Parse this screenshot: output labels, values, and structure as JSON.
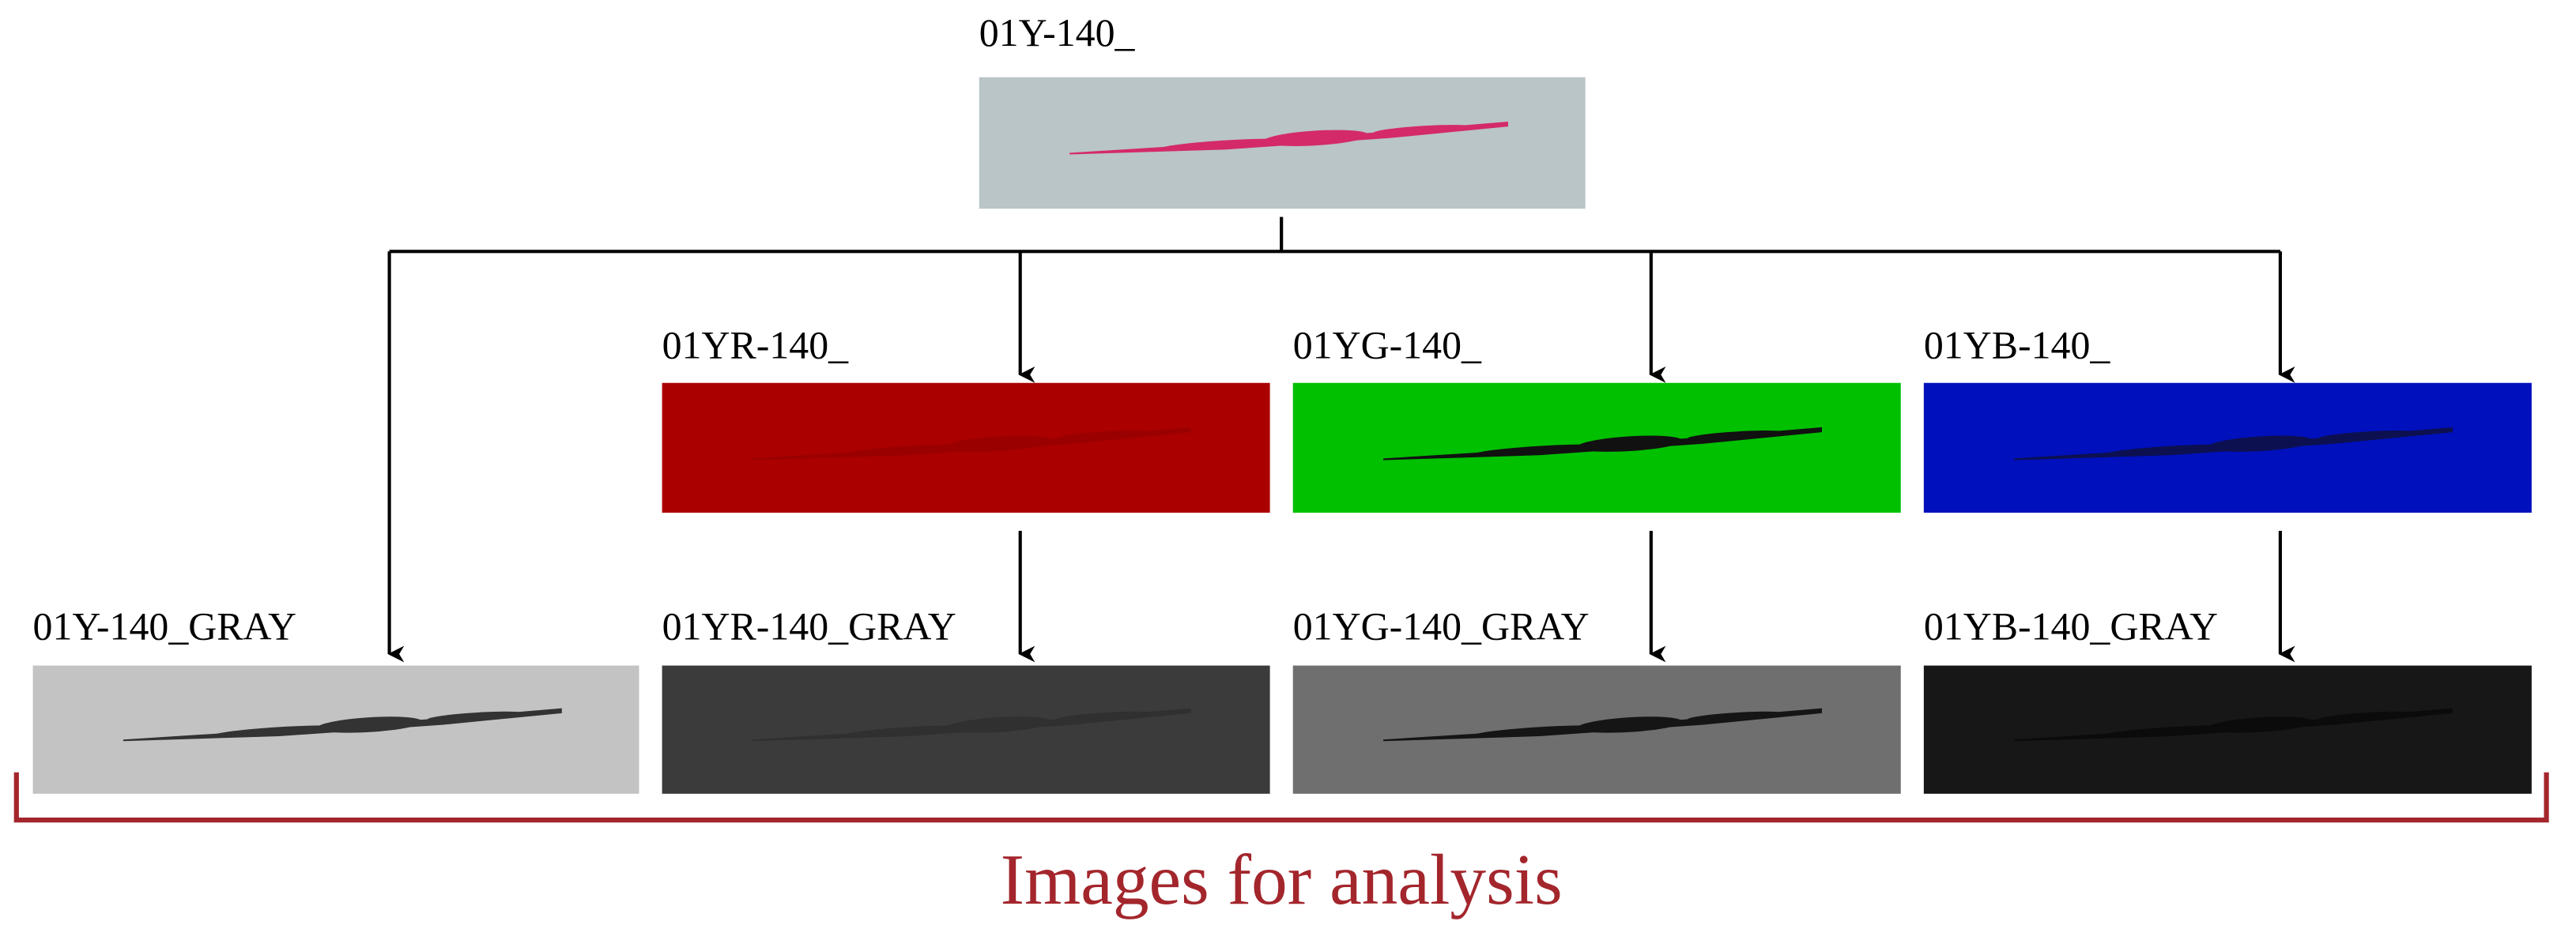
{
  "nodes": [
    {
      "label": "01Y-140_"
    },
    {
      "label": "01YR-140_"
    },
    {
      "label": "01YG-140_"
    },
    {
      "label": "01YB-140_"
    },
    {
      "label": "01Y-140_GRAY"
    },
    {
      "label": "01YR-140_GRAY"
    },
    {
      "label": "01YG-140_GRAY"
    },
    {
      "label": "01YB-140_GRAY"
    }
  ],
  "caption": "Images for analysis"
}
